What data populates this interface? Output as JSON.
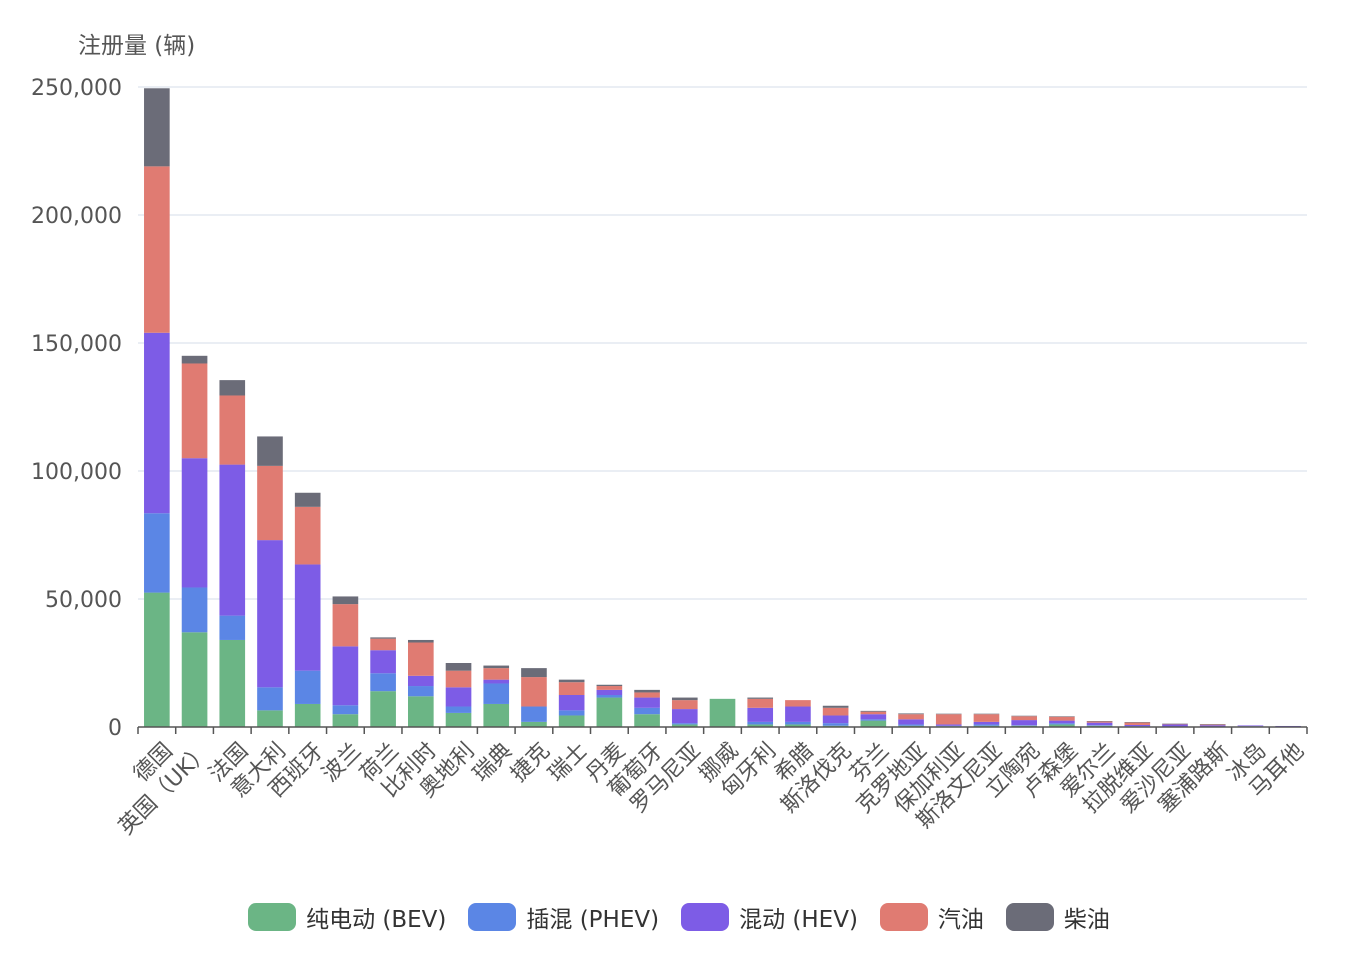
{
  "chart_data": {
    "type": "bar",
    "stacked": true,
    "ylabel": "注册量 (辆)",
    "ylim": [
      0,
      250000
    ],
    "yticks": [
      0,
      50000,
      100000,
      150000,
      200000,
      250000
    ],
    "ytick_labels": [
      "0",
      "50,000",
      "100,000",
      "150,000",
      "200,000",
      "250,000"
    ],
    "grid": true,
    "legend_position": "bottom",
    "categories": [
      "德国",
      "英国（UK）",
      "法国",
      "意大利",
      "西班牙",
      "波兰",
      "荷兰",
      "比利时",
      "奥地利",
      "瑞典",
      "捷克",
      "瑞士",
      "丹麦",
      "葡萄牙",
      "罗马尼亚",
      "挪威",
      "匈牙利",
      "希腊",
      "斯洛伐克",
      "芬兰",
      "克罗地亚",
      "保加利亚",
      "斯洛文尼亚",
      "立陶宛",
      "卢森堡",
      "爱尔兰",
      "拉脱维亚",
      "爱沙尼亚",
      "塞浦路斯",
      "冰岛",
      "马耳他"
    ],
    "series": [
      {
        "name": "纯电动 (BEV)",
        "color": "#6bb585",
        "values": [
          52500,
          37000,
          34000,
          6500,
          9000,
          5000,
          14000,
          12000,
          5500,
          9000,
          2000,
          4500,
          11500,
          5000,
          1000,
          11000,
          1000,
          1000,
          500,
          2500,
          500,
          300,
          500,
          500,
          1000,
          500,
          200,
          100,
          100,
          300,
          100
        ]
      },
      {
        "name": "插混 (PHEV)",
        "color": "#5b86e5",
        "values": [
          31000,
          17500,
          9500,
          9000,
          13000,
          3500,
          7000,
          4000,
          2500,
          8000,
          6000,
          2000,
          1000,
          2500,
          500,
          0,
          1000,
          1000,
          1000,
          500,
          500,
          200,
          500,
          200,
          500,
          200,
          100,
          100,
          100,
          0,
          0
        ]
      },
      {
        "name": "混动 (HEV)",
        "color": "#7d5ce6",
        "values": [
          70500,
          50500,
          59000,
          57500,
          41500,
          23000,
          9000,
          4000,
          7500,
          1500,
          0,
          6000,
          2000,
          4000,
          5500,
          0,
          5500,
          6000,
          3000,
          2000,
          2000,
          500,
          1000,
          2000,
          1000,
          1000,
          500,
          800,
          500,
          300,
          300
        ]
      },
      {
        "name": "汽油",
        "color": "#e07b72",
        "values": [
          65000,
          37000,
          27000,
          29000,
          22500,
          16500,
          4500,
          13000,
          6500,
          4500,
          11500,
          5000,
          1500,
          2000,
          3500,
          0,
          3500,
          2500,
          3000,
          1000,
          2000,
          4000,
          3000,
          1500,
          1500,
          500,
          1000,
          200,
          300,
          0,
          0
        ]
      },
      {
        "name": "柴油",
        "color": "#6b6c78",
        "values": [
          30500,
          3000,
          6000,
          11500,
          5500,
          3000,
          500,
          1000,
          3000,
          1000,
          3500,
          1000,
          500,
          1000,
          1000,
          0,
          500,
          0,
          800,
          300,
          300,
          200,
          200,
          200,
          200,
          100,
          100,
          100,
          100,
          0,
          0
        ]
      }
    ]
  }
}
